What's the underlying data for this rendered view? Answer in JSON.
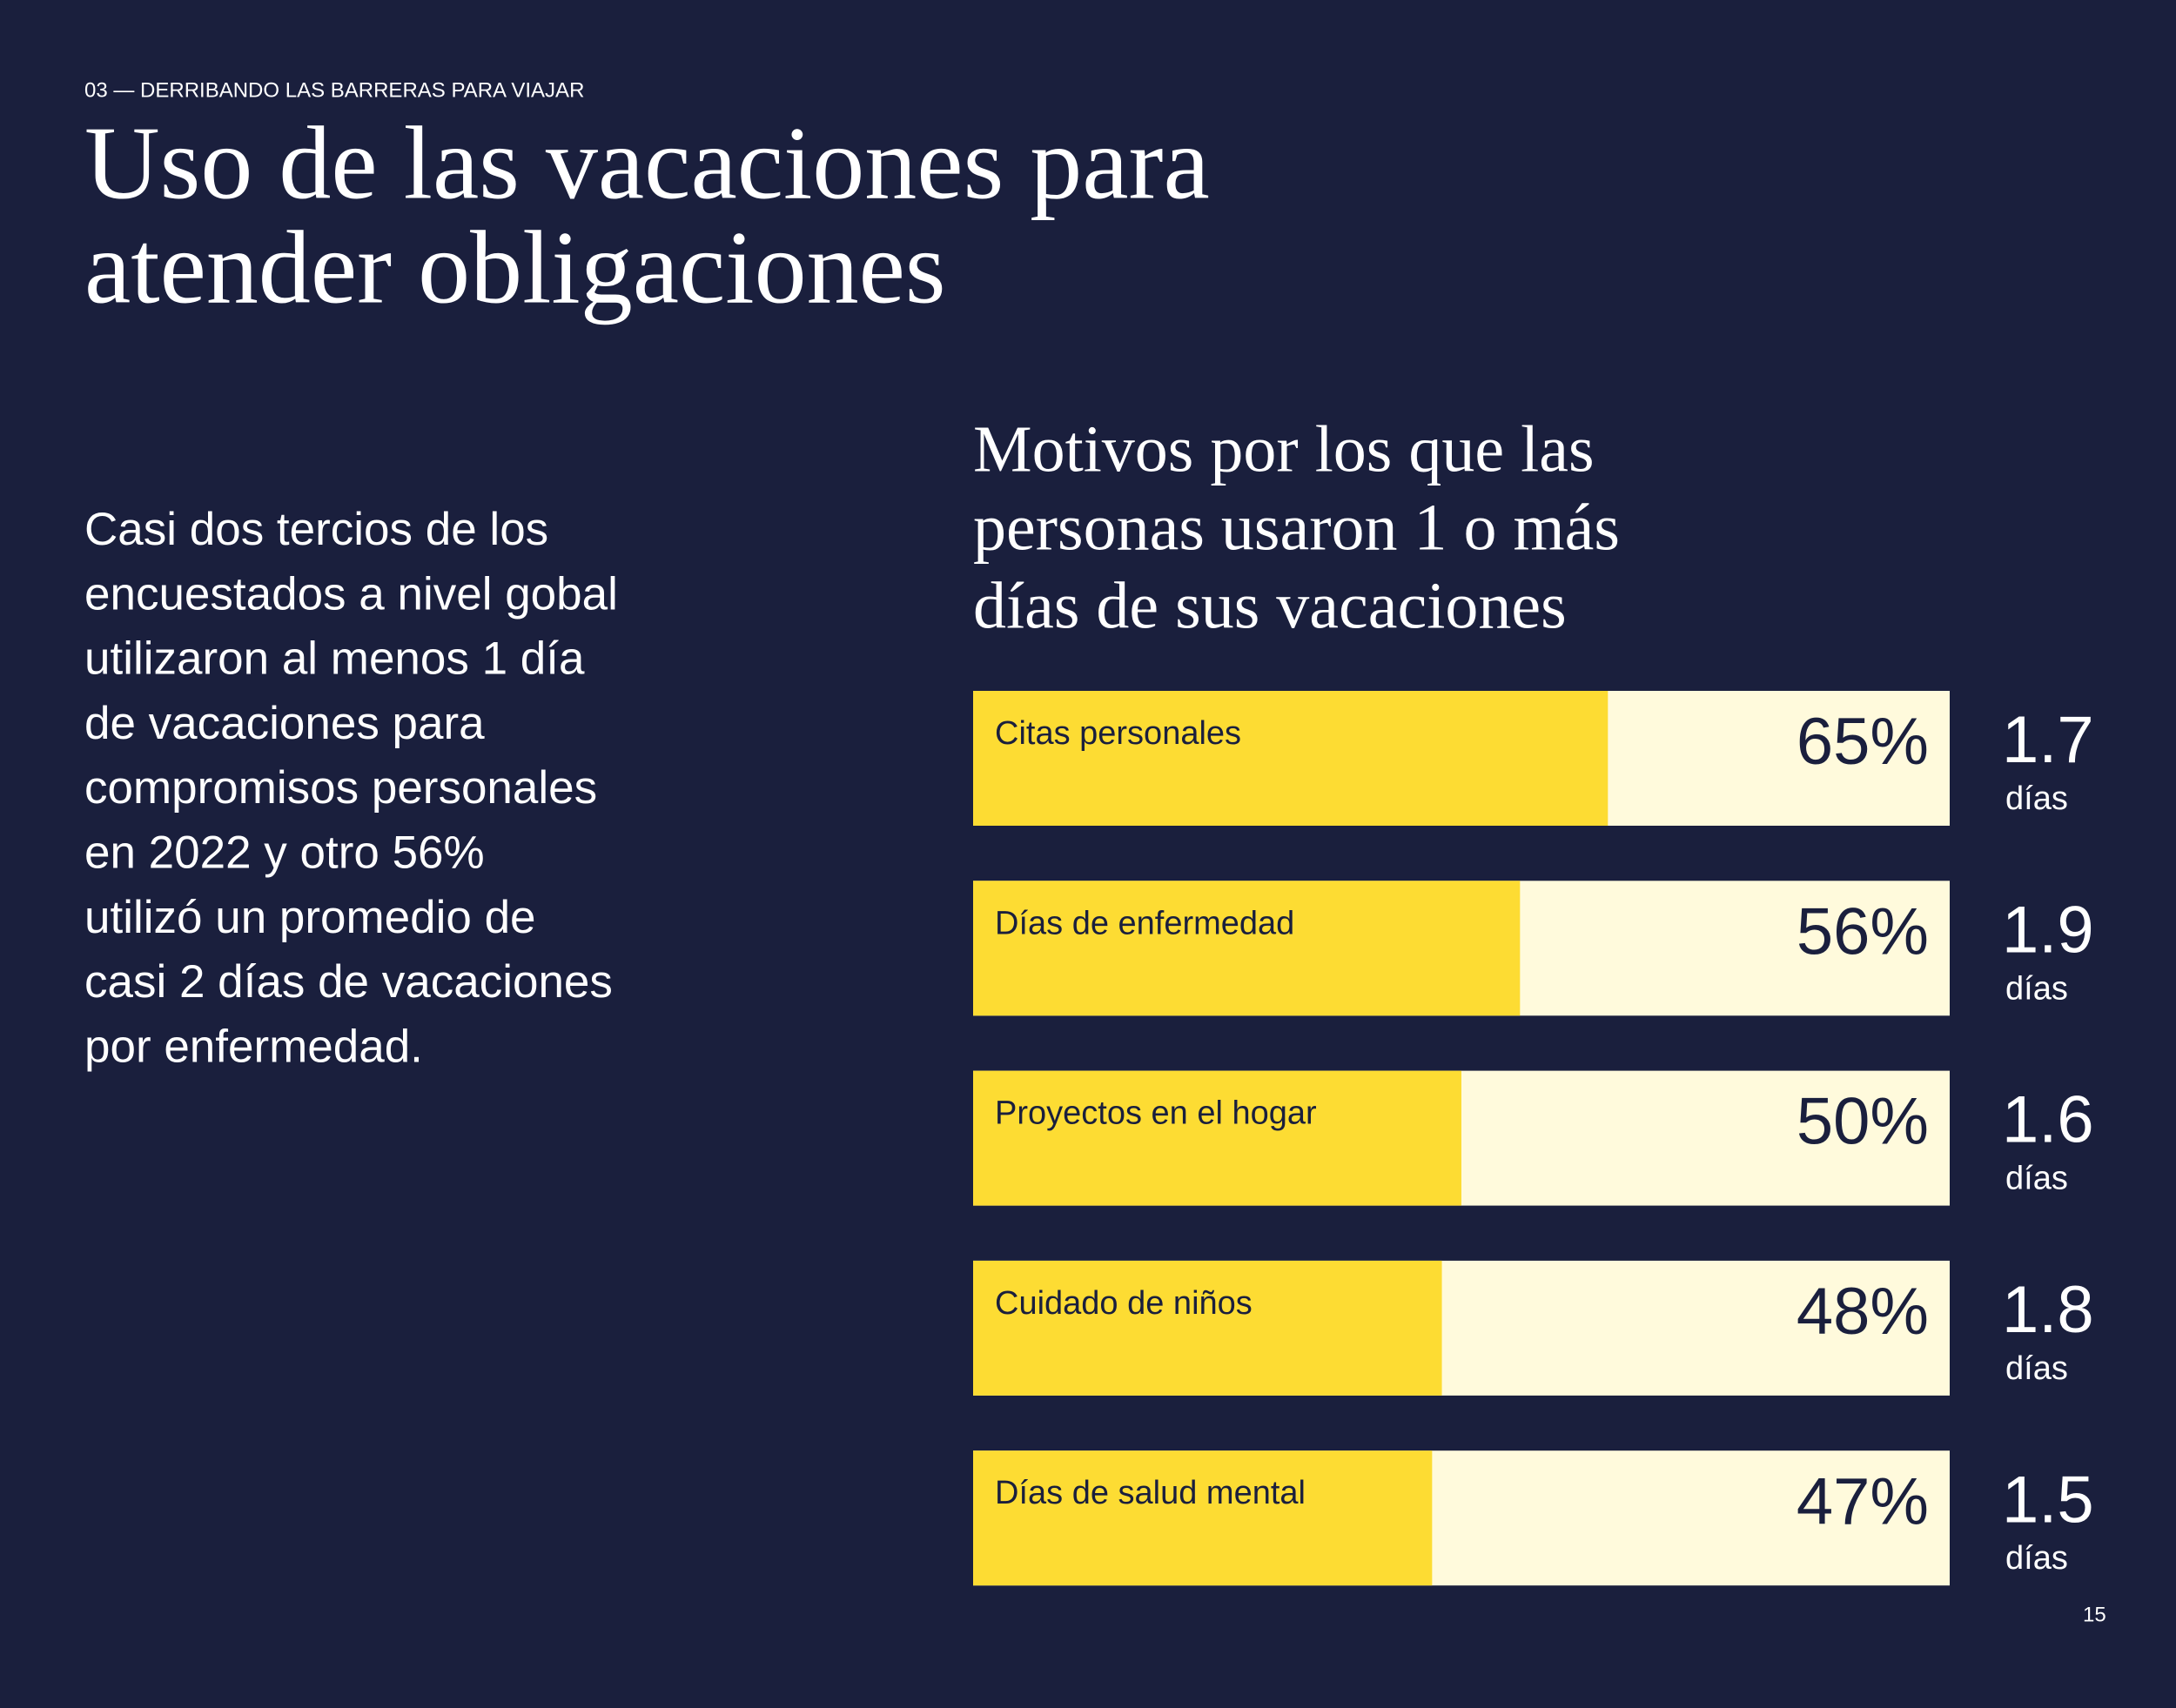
{
  "section": "03 — DERRIBANDO LAS BARRERAS PARA VIAJAR",
  "title": [
    "Uso de las vacaciones para",
    "atender obligaciones"
  ],
  "body": [
    "Casi dos tercios de los",
    "encuestados a nivel gobal",
    "utilizaron al menos 1 día",
    "de vacaciones para",
    "compromisos personales",
    "en 2022 y otro 56%",
    "utilizó un promedio de",
    "casi 2 días de vacaciones",
    "por enfermedad."
  ],
  "page_number": "15",
  "chart_data": {
    "type": "bar",
    "title": [
      "Motivos por los que las",
      "personas usaron 1 o más",
      "días de sus vacaciones"
    ],
    "categories": [
      "Citas personales",
      "Días de enfermedad",
      "Proyectos en el hogar",
      "Cuidado de niños",
      "Días de salud mental"
    ],
    "values": [
      65,
      56,
      50,
      48,
      47
    ],
    "value_labels": [
      "65%",
      "56%",
      "50%",
      "48%",
      "47%"
    ],
    "color": "#fddc33",
    "track_color": "#fffadc",
    "xlim": [
      0,
      100
    ],
    "days": [
      1.7,
      1.9,
      1.6,
      1.8,
      1.5
    ],
    "days_unit": "días"
  }
}
